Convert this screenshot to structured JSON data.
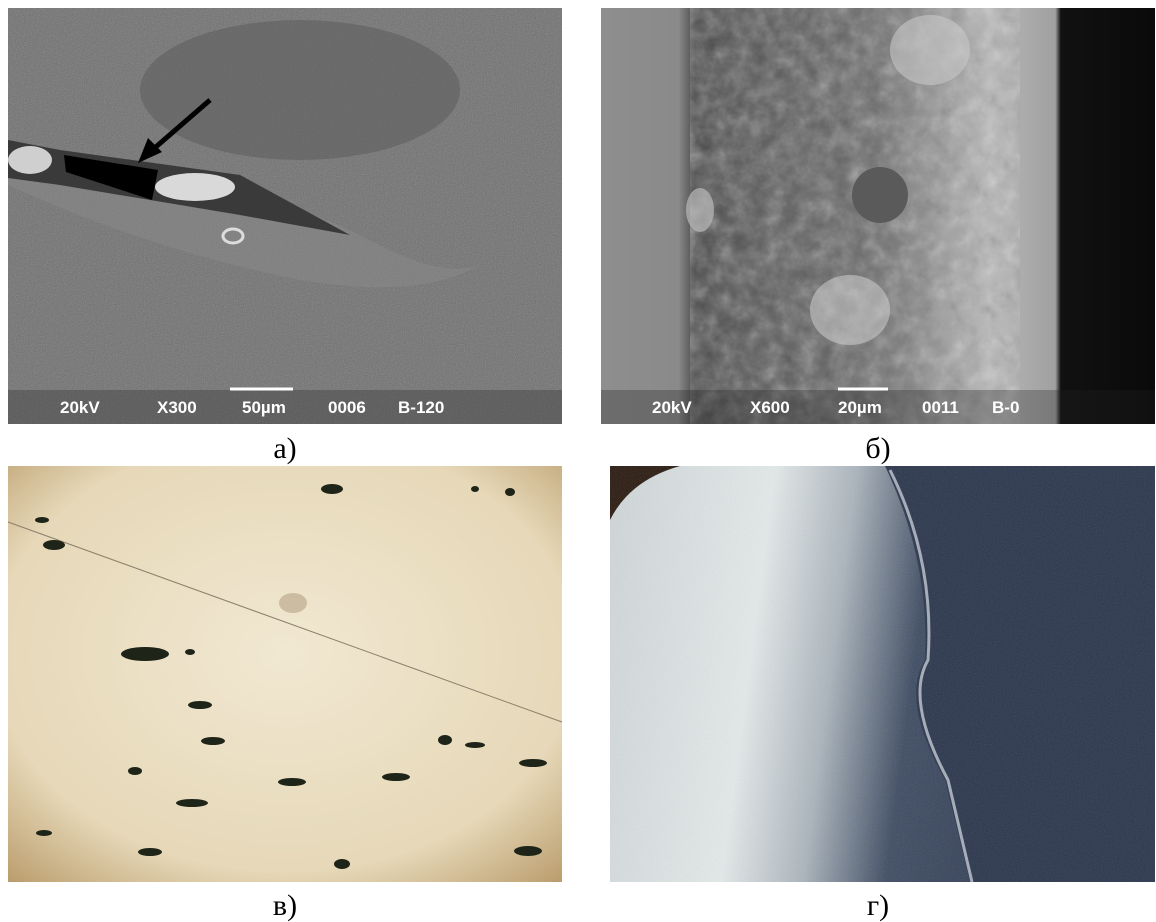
{
  "panels": [
    {
      "caption": "а)",
      "info_bar": {
        "voltage": "20kV",
        "magnification": "X300",
        "scale": "50µm",
        "number": "0006",
        "sample": "B-120"
      }
    },
    {
      "caption": "б)",
      "info_bar": {
        "voltage": "20kV",
        "magnification": "X600",
        "scale": "20µm",
        "number": "0011",
        "sample": "B-0"
      }
    },
    {
      "caption": "в)"
    },
    {
      "caption": "г)"
    }
  ]
}
